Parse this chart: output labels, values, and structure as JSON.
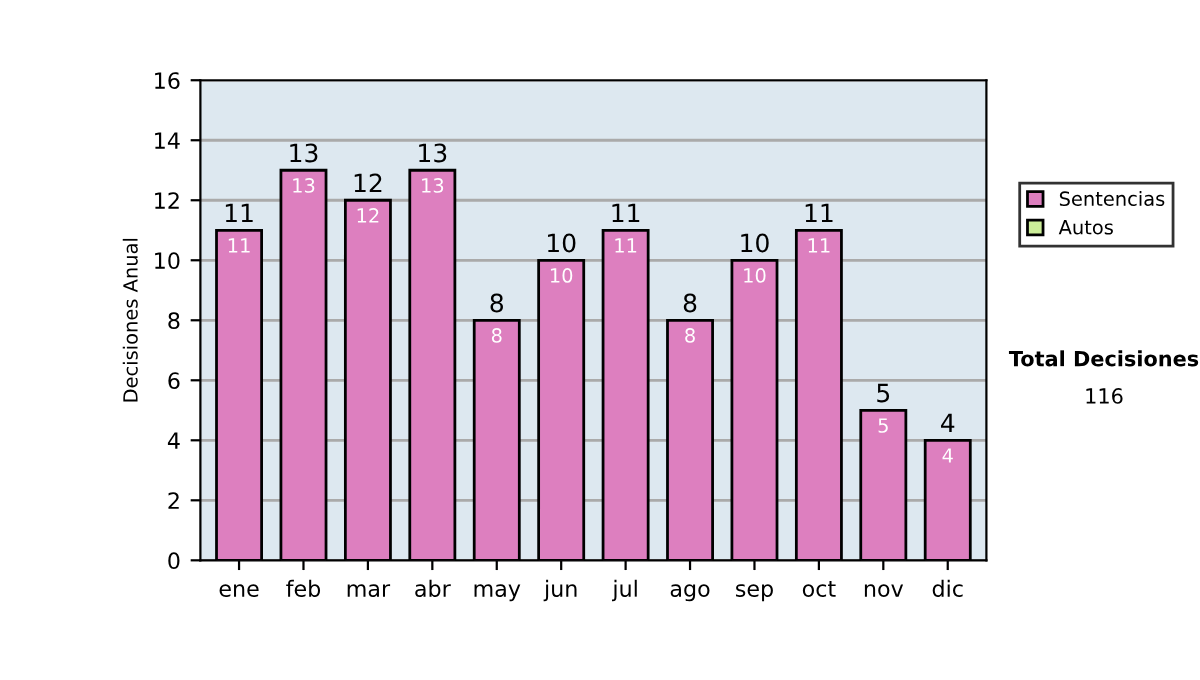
{
  "chart_data": {
    "type": "bar",
    "stacked": true,
    "ylabel": "Decisiones Anual",
    "categories": [
      "ene",
      "feb",
      "mar",
      "abr",
      "may",
      "jun",
      "jul",
      "ago",
      "sep",
      "oct",
      "nov",
      "dic"
    ],
    "series": [
      {
        "name": "Sentencias",
        "color": "#dd7fbf",
        "values": [
          11,
          13,
          12,
          13,
          8,
          10,
          11,
          8,
          10,
          11,
          5,
          4
        ],
        "value_labels": [
          "11",
          "13",
          "12",
          "13",
          "8",
          "10",
          "11",
          "8",
          "10",
          "11",
          "5",
          "4"
        ]
      },
      {
        "name": "Autos",
        "color": "#ccee99",
        "values": [
          0,
          0,
          0,
          0,
          0,
          0,
          0,
          0,
          0,
          0,
          0,
          0
        ]
      }
    ],
    "totals": [
      "11",
      "13",
      "12",
      "13",
      "8",
      "10",
      "11",
      "8",
      "10",
      "11",
      "5",
      "4"
    ],
    "ylim": [
      0,
      16
    ],
    "yticks": [
      0,
      2,
      4,
      6,
      8,
      10,
      12,
      14,
      16
    ],
    "grid": "y",
    "legend": "right",
    "annotations": [
      "Total Decisiones",
      "116"
    ]
  }
}
